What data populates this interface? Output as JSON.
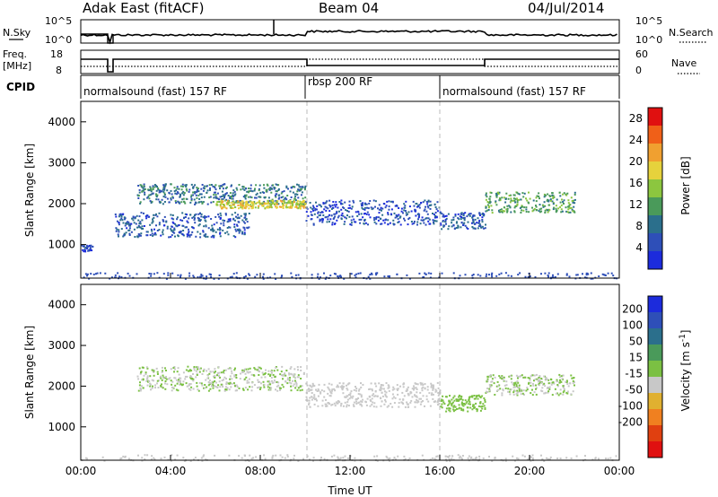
{
  "header": {
    "station": "Adak East (fitACF)",
    "beam": "Beam 04",
    "date": "04/Jul/2014"
  },
  "noise_panel": {
    "left_label": "N.Sky",
    "right_label": "N.Search",
    "left_ticks": [
      "10^5",
      "10^0"
    ],
    "right_ticks": [
      "10^5",
      "10^0"
    ]
  },
  "freq_panel": {
    "left_label_line1": "Freq.",
    "left_label_line2": "[MHz]",
    "right_label": "Nave",
    "left_ticks": [
      "18",
      "8"
    ],
    "right_ticks": [
      "60",
      "0"
    ]
  },
  "cpid_panel": {
    "label": "CPID",
    "segments": [
      {
        "label": "normalsound (fast) 157 RF",
        "start_hour": 0,
        "end_hour": 10
      },
      {
        "label": "rbsp 200 RF",
        "start_hour": 10,
        "end_hour": 16
      },
      {
        "label": "normalsound (fast) 157 RF",
        "start_hour": 16,
        "end_hour": 24
      }
    ]
  },
  "colors": {
    "power_scale": [
      "#1c2bdc",
      "#2e4fb8",
      "#2b6f8c",
      "#4a9a5a",
      "#8cc63f",
      "#e6d23c",
      "#f0a030",
      "#f06018",
      "#e01010"
    ],
    "velocity_scale": [
      "#1c2bdc",
      "#2e4fb8",
      "#2b6f8c",
      "#4a9a5a",
      "#7bc043",
      "#c8c8c8",
      "#e0b030",
      "#f08020",
      "#e04010",
      "#e01010"
    ]
  },
  "chart_data": [
    {
      "type": "heatmap",
      "name": "power",
      "xlabel": "",
      "ylabel": "Slant Range [km]",
      "xlim": [
        0,
        24
      ],
      "ylim": [
        180,
        4500
      ],
      "y_ticks": [
        "1000",
        "2000",
        "3000",
        "4000"
      ],
      "colorbar": {
        "label": "Power [dB]",
        "ticks": [
          "4",
          "8",
          "12",
          "16",
          "20",
          "24",
          "28"
        ],
        "range": [
          0,
          30
        ]
      },
      "bands": [
        {
          "t0": 0,
          "t1": 0.5,
          "r0": 850,
          "r1": 1000,
          "level": 4
        },
        {
          "t0": 1.5,
          "t1": 7.5,
          "r0": 1200,
          "r1": 1800,
          "level": 6
        },
        {
          "t0": 2.5,
          "t1": 10,
          "r0": 2000,
          "r1": 2500,
          "level": 8
        },
        {
          "t0": 6,
          "t1": 10,
          "r0": 1900,
          "r1": 2100,
          "level": 18
        },
        {
          "t0": 10,
          "t1": 16,
          "r0": 1500,
          "r1": 2100,
          "level": 5
        },
        {
          "t0": 16,
          "t1": 18,
          "r0": 1400,
          "r1": 1800,
          "level": 6
        },
        {
          "t0": 18,
          "t1": 22,
          "r0": 1800,
          "r1": 2300,
          "level": 12
        }
      ]
    },
    {
      "type": "heatmap",
      "name": "velocity",
      "xlabel": "Time UT",
      "ylabel": "Slant Range [km]",
      "xlim": [
        0,
        24
      ],
      "ylim": [
        180,
        4500
      ],
      "x_ticks": [
        "00:00",
        "04:00",
        "08:00",
        "12:00",
        "16:00",
        "20:00",
        "00:00"
      ],
      "y_ticks": [
        "1000",
        "2000",
        "3000",
        "4000"
      ],
      "colorbar": {
        "label": "Velocity [m s^-1]",
        "ticks": [
          "200",
          "100",
          "50",
          "15",
          "-15",
          "-50",
          "-100",
          "-200"
        ],
        "range": [
          -250,
          250
        ]
      },
      "bands": [
        {
          "t0": 2.5,
          "t1": 10,
          "r0": 1900,
          "r1": 2500,
          "level": 0
        },
        {
          "t0": 10,
          "t1": 16,
          "r0": 1500,
          "r1": 2100,
          "level": -30
        },
        {
          "t0": 16,
          "t1": 18,
          "r0": 1400,
          "r1": 1800,
          "level": 30
        },
        {
          "t0": 18,
          "t1": 22,
          "r0": 1800,
          "r1": 2300,
          "level": 0
        }
      ]
    }
  ]
}
